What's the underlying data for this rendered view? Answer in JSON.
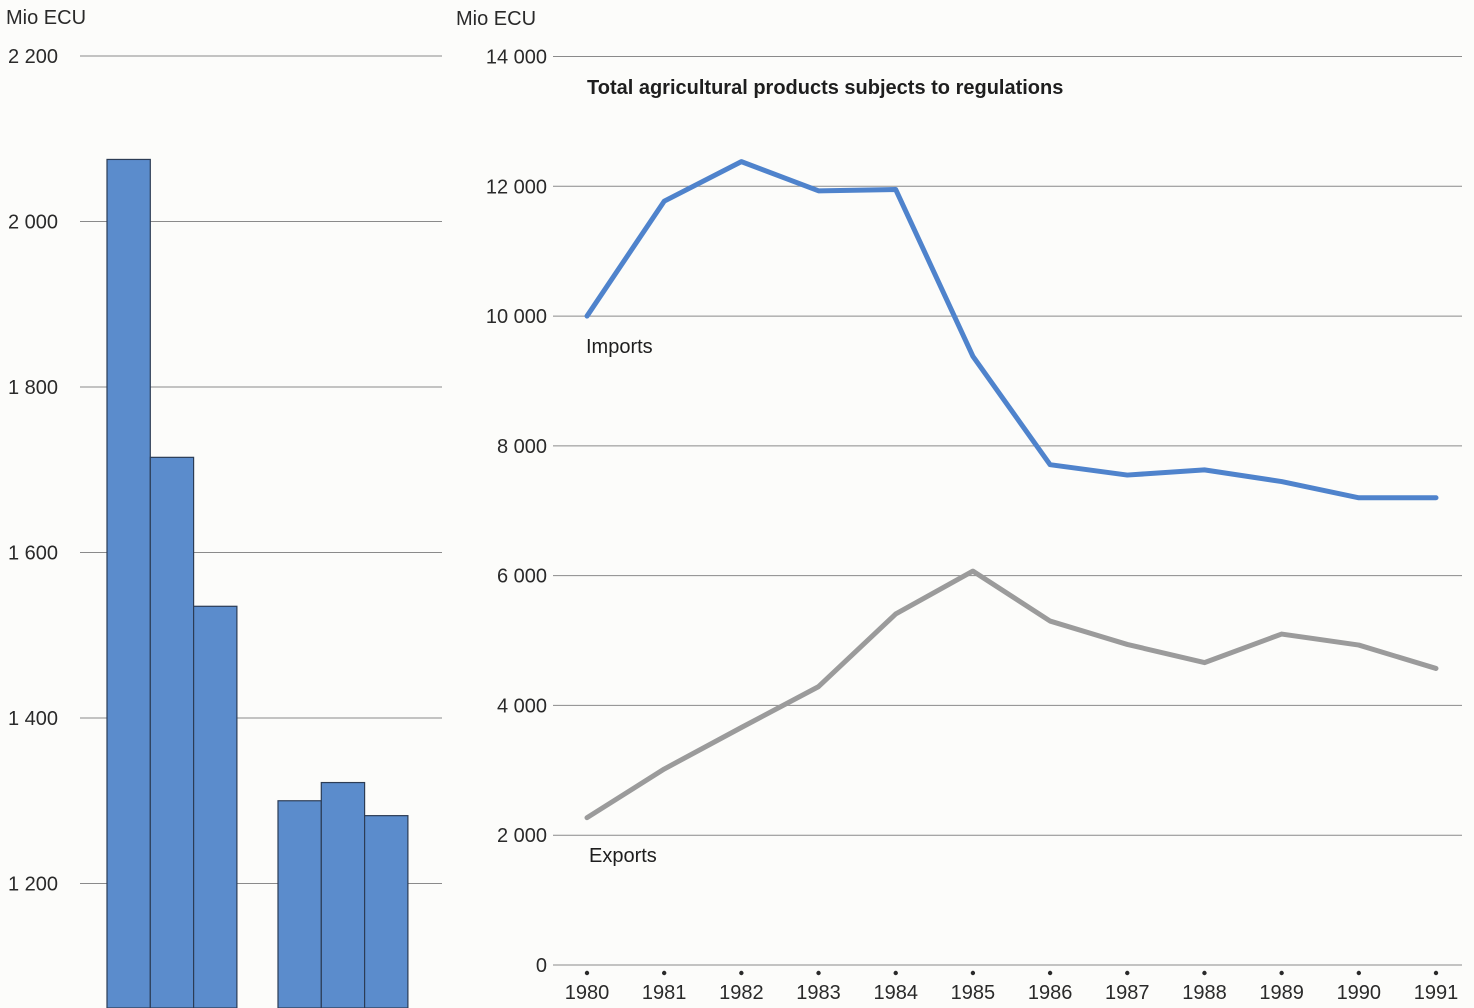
{
  "chart_data": [
    {
      "type": "bar",
      "ylabel": "Mio ECU",
      "ylim": [
        1100,
        2200
      ],
      "yticks": [
        "2 200",
        "2 000",
        "1 800",
        "1 600",
        "1 400",
        "1 200"
      ],
      "ytick_values": [
        2200,
        2000,
        1800,
        1600,
        1400,
        1200
      ],
      "grid": true,
      "groups": [
        {
          "values": [
            2075,
            1715,
            1535
          ]
        },
        {
          "values": [
            1300,
            1322,
            1282
          ]
        }
      ],
      "color": "#5b8ccc"
    },
    {
      "type": "line",
      "title": "Total agricultural products subjects to regulations",
      "ylabel": "Mio ECU",
      "ylim": [
        0,
        14000
      ],
      "yticks": [
        "14 000",
        "12 000",
        "10 000",
        "8 000",
        "6 000",
        "4 000",
        "2 000",
        "0"
      ],
      "ytick_values": [
        14000,
        12000,
        10000,
        8000,
        6000,
        4000,
        2000,
        0
      ],
      "grid": true,
      "x": [
        "1980",
        "1981",
        "1982",
        "1983",
        "1984",
        "1985",
        "1986",
        "1987",
        "1988",
        "1989",
        "1990",
        "1991"
      ],
      "series": [
        {
          "name": "Imports",
          "color": "#4f83cc",
          "values": [
            10000,
            11770,
            12380,
            11930,
            11950,
            9380,
            7710,
            7550,
            7630,
            7450,
            7200,
            7200
          ]
        },
        {
          "name": "Exports",
          "color": "#9b9b9b",
          "values": [
            2270,
            3020,
            3660,
            4290,
            5410,
            6070,
            5300,
            4940,
            4660,
            5100,
            4930,
            4570
          ]
        }
      ]
    }
  ]
}
